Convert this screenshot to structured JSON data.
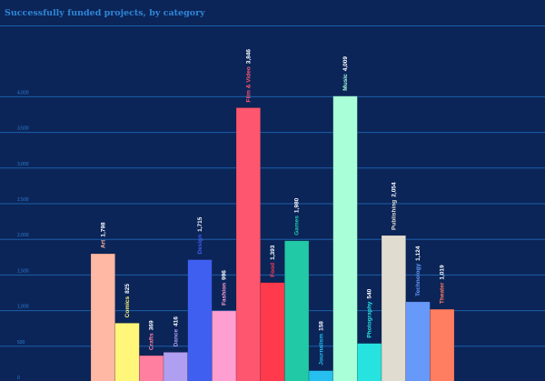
{
  "chart_data": {
    "type": "bar",
    "title": "Successfully funded projects, by category",
    "xlabel": "",
    "ylabel": "",
    "ylim": [
      0,
      4000
    ],
    "yticks": [
      0,
      500,
      1000,
      1500,
      2000,
      2500,
      3000,
      3500,
      4000
    ],
    "ytick_labels": [
      "0",
      "500",
      "1,000",
      "1,500",
      "2,000",
      "2,500",
      "3,000",
      "3,500",
      "4,000"
    ],
    "grid": true,
    "categories": [
      "Art",
      "Comics",
      "Crafts",
      "Dance",
      "Design",
      "Fashion",
      "Film & Video",
      "Food",
      "Games",
      "Journalism",
      "Music",
      "Photography",
      "Publishing",
      "Technology",
      "Theater"
    ],
    "values": [
      1798,
      825,
      369,
      416,
      1715,
      996,
      3846,
      1393,
      1980,
      158,
      4009,
      540,
      2054,
      1124,
      1019
    ],
    "value_labels": [
      "1,798",
      "825",
      "369",
      "416",
      "1,715",
      "996",
      "3,846",
      "1,393",
      "1,980",
      "158",
      "4,009",
      "540",
      "2,054",
      "1,124",
      "1,019"
    ],
    "colors": [
      "#ffb8a3",
      "#fff67a",
      "#ff7fa0",
      "#b09ef0",
      "#3f5ff0",
      "#ff9ed0",
      "#ff566f",
      "#ff3a4c",
      "#22c9a6",
      "#25c0f0",
      "#a8ffd8",
      "#27e3e0",
      "#e0dcd0",
      "#6699f8",
      "#ff7d60"
    ],
    "label_colors": [
      "#ffb8a3",
      "#fff67a",
      "#ff7fa0",
      "#b09ef0",
      "#3f5ff0",
      "#ff9ed0",
      "#ff566f",
      "#ff3a4c",
      "#22c9a6",
      "#25c0f0",
      "#a8ffd8",
      "#27e3e0",
      "#e0dcd0",
      "#6699f8",
      "#ff7d60"
    ],
    "value_label_color": "#ffffff"
  },
  "colors": {
    "background": "#0b2559",
    "grid": "#1c5fa8",
    "title": "#2f86d6"
  }
}
